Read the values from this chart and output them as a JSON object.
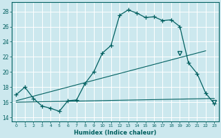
{
  "title": "",
  "xlabel": "Humidex (Indice chaleur)",
  "bg_color": "#cce8ee",
  "grid_color": "#ffffff",
  "line_color": "#005f5f",
  "xlim": [
    -0.5,
    23.5
  ],
  "ylim": [
    13.5,
    29.2
  ],
  "xticks": [
    0,
    1,
    2,
    3,
    4,
    5,
    6,
    7,
    8,
    9,
    10,
    11,
    12,
    13,
    14,
    15,
    16,
    17,
    18,
    19,
    20,
    21,
    22,
    23
  ],
  "yticks": [
    14,
    16,
    18,
    20,
    22,
    24,
    26,
    28
  ],
  "main_curve": [
    17.0,
    18.0,
    16.5,
    15.5,
    15.2,
    14.8,
    16.2,
    16.3,
    18.5,
    20.0,
    22.5,
    23.5,
    27.5,
    28.2,
    27.8,
    27.2,
    27.3,
    26.8,
    26.9,
    26.0,
    21.2,
    19.8,
    17.2,
    15.8
  ],
  "line_diag_high": [
    [
      0,
      16.2
    ],
    [
      22,
      22.8
    ]
  ],
  "line_diag_low": [
    [
      0,
      16.0
    ],
    [
      23,
      16.5
    ]
  ],
  "triangle_high_x": 19,
  "triangle_high_y": 22.5,
  "triangle_low_x": 23,
  "triangle_low_y": 16.0
}
